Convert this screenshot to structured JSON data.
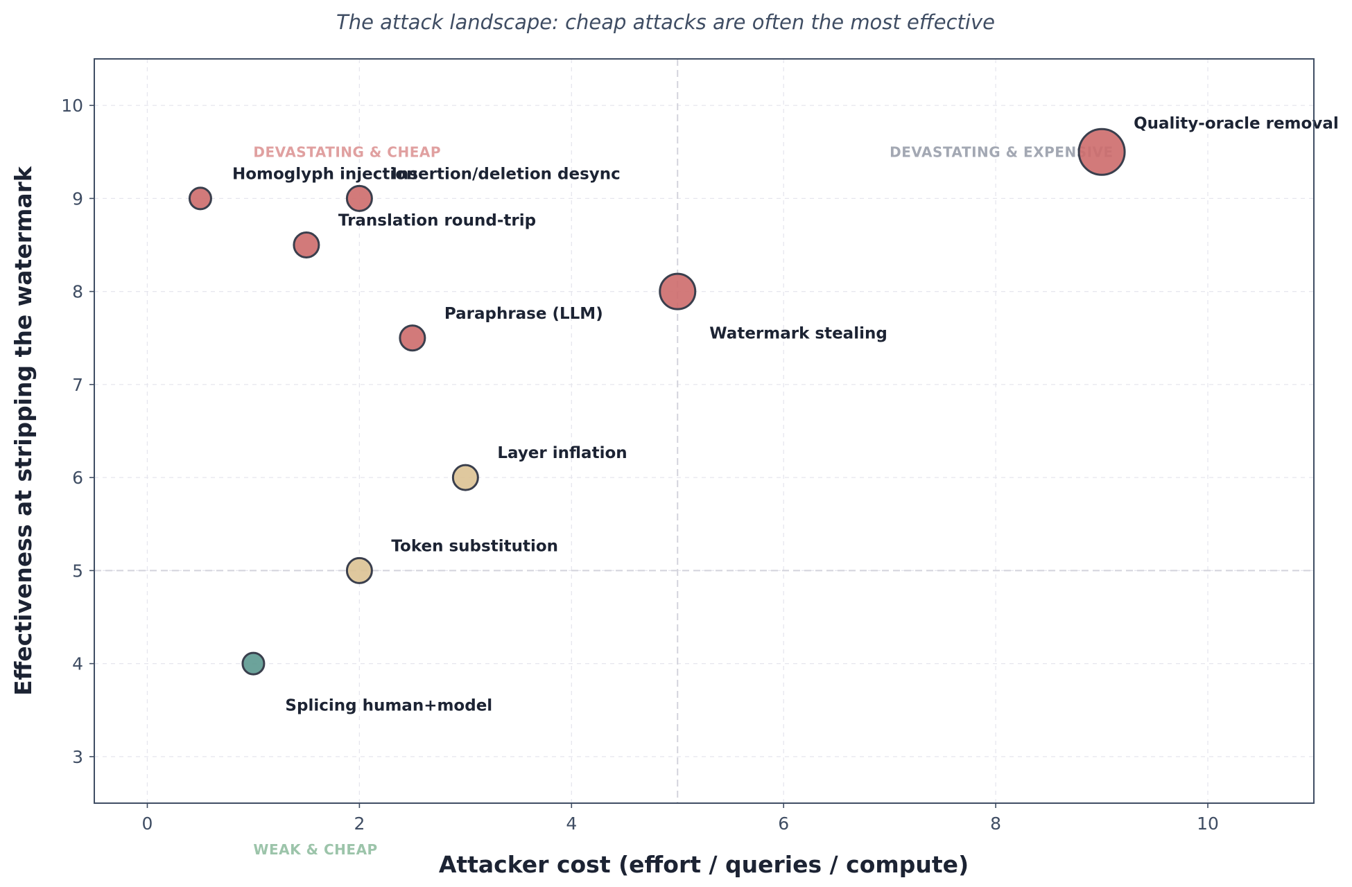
{
  "chart_data": {
    "type": "scatter",
    "title": "The attack landscape: cheap attacks are often the most effective",
    "xlabel": "Attacker cost (effort / queries / compute)",
    "ylabel": "Effectiveness at stripping the watermark",
    "xlim": [
      -0.5,
      11
    ],
    "ylim": [
      2.5,
      10.5
    ],
    "xticks": [
      0,
      2,
      4,
      6,
      8,
      10
    ],
    "yticks": [
      3,
      4,
      5,
      6,
      7,
      8,
      9,
      10
    ],
    "grid": true,
    "reference_lines": {
      "x": 5,
      "y": 5
    },
    "colors": {
      "high": "#cd6b6b",
      "medium": "#dcc294",
      "low": "#5c9990"
    },
    "points": [
      {
        "label": "Homoglyph injection",
        "x": 0.5,
        "y": 9.0,
        "size": 1,
        "category": "high"
      },
      {
        "label": "Insertion/deletion desync",
        "x": 2.0,
        "y": 9.0,
        "size": 2,
        "category": "high"
      },
      {
        "label": "Translation round-trip",
        "x": 1.5,
        "y": 8.5,
        "size": 2,
        "category": "high"
      },
      {
        "label": "Paraphrase (LLM)",
        "x": 2.5,
        "y": 7.5,
        "size": 2,
        "category": "high"
      },
      {
        "label": "Watermark stealing",
        "x": 5.0,
        "y": 8.0,
        "size": 5,
        "category": "high"
      },
      {
        "label": "Quality-oracle removal",
        "x": 9.0,
        "y": 9.5,
        "size": 8,
        "category": "high"
      },
      {
        "label": "Layer inflation",
        "x": 3.0,
        "y": 6.0,
        "size": 2,
        "category": "medium"
      },
      {
        "label": "Token substitution",
        "x": 2.0,
        "y": 5.0,
        "size": 2,
        "category": "medium"
      },
      {
        "label": "Splicing human+model",
        "x": 1.0,
        "y": 4.0,
        "size": 1,
        "category": "low"
      }
    ],
    "quadrant_labels": [
      {
        "text": "DEVASTATING & CHEAP",
        "x": 1.0,
        "y": 9.5,
        "color": "#e0a0a0"
      },
      {
        "text": "DEVASTATING & EXPENSIVE",
        "x": 7.0,
        "y": 9.5,
        "color": "#a3a8b3"
      },
      {
        "text": "WEAK & CHEAP",
        "x": 1.0,
        "y": 2.0,
        "color": "#9cc4aa"
      }
    ]
  }
}
